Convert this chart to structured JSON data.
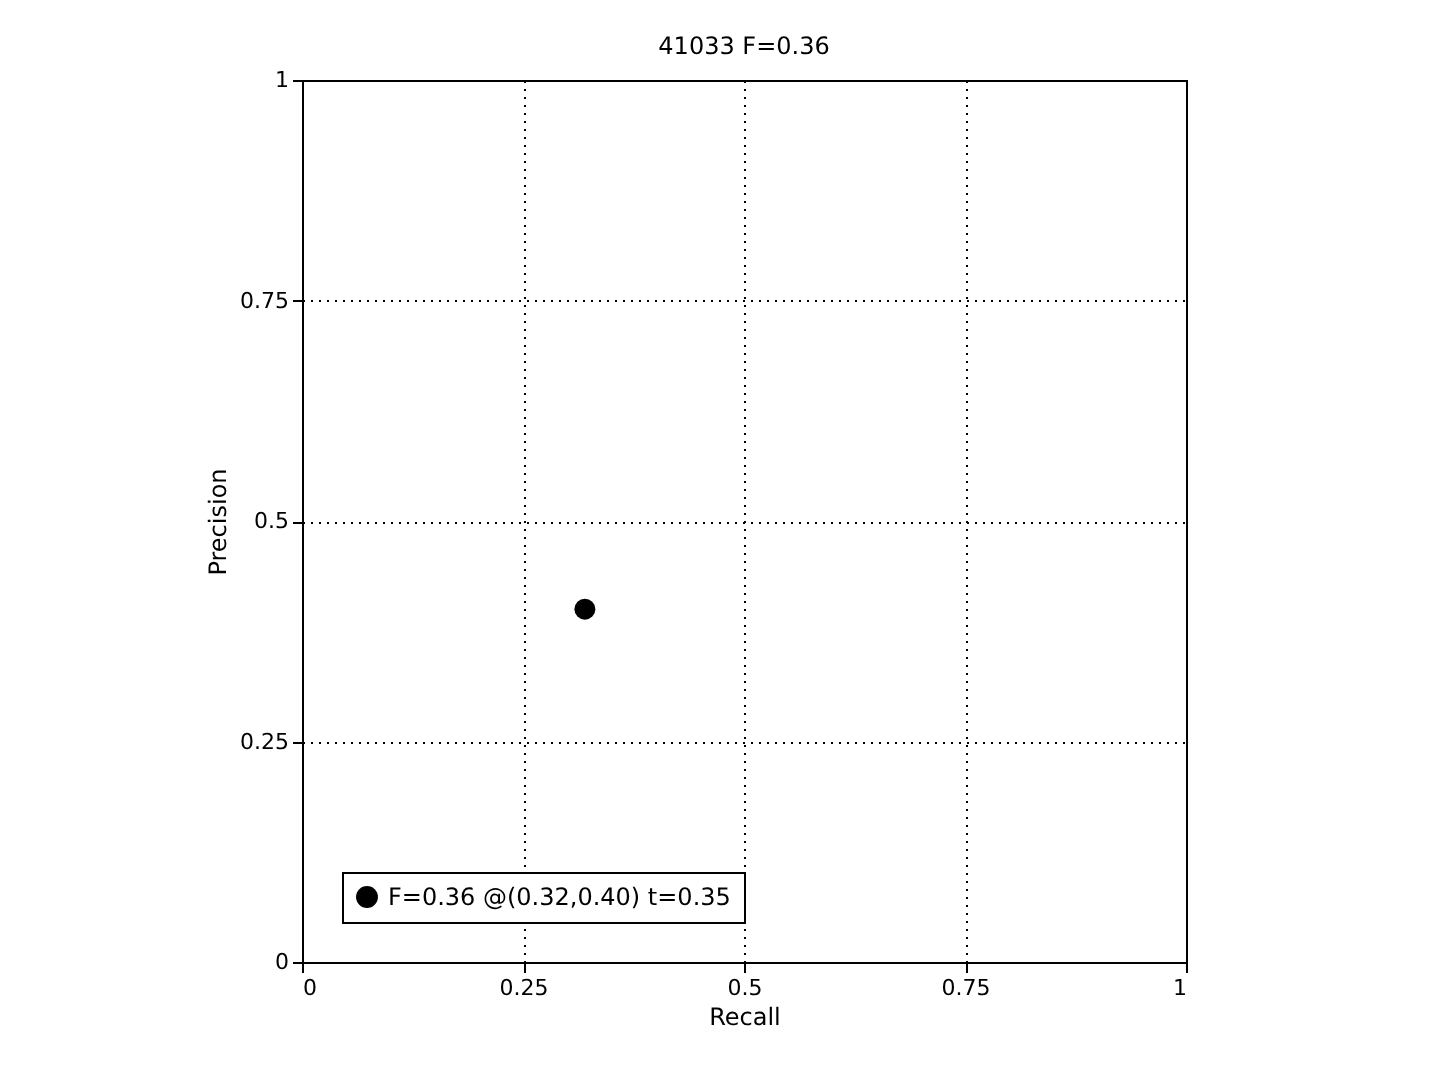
{
  "chart_data": {
    "type": "scatter",
    "title": "41033 F=0.36",
    "xlabel": "Recall",
    "ylabel": "Precision",
    "x": [
      0.32
    ],
    "series": [
      {
        "name": "F=0.36 @(0.32,0.40) t=0.35",
        "color": "#000000",
        "values": [
          0.4
        ]
      }
    ],
    "xlim": [
      0,
      1
    ],
    "ylim": [
      0,
      1
    ],
    "xticks": [
      0,
      0.25,
      0.5,
      0.75,
      1
    ],
    "yticks": [
      0,
      0.25,
      0.5,
      0.75,
      1
    ],
    "grid": true,
    "legend": "bottom left",
    "marker": "circle"
  }
}
